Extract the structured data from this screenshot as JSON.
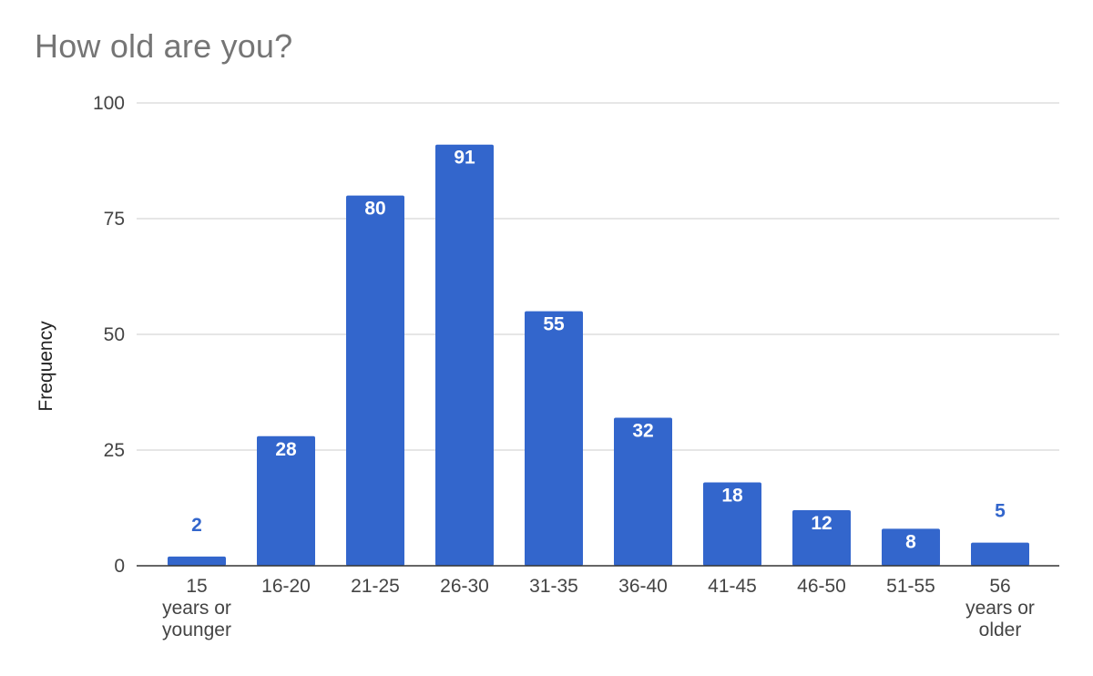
{
  "chart_data": {
    "type": "bar",
    "title": "How old are you?",
    "xlabel": "",
    "ylabel": "Frequency",
    "ylim": [
      0,
      100
    ],
    "yticks": [
      0,
      25,
      50,
      75,
      100
    ],
    "grid": true,
    "legend": "none",
    "categories": [
      [
        "15",
        "years or",
        "younger"
      ],
      [
        "16-20"
      ],
      [
        "21-25"
      ],
      [
        "26-30"
      ],
      [
        "31-35"
      ],
      [
        "36-40"
      ],
      [
        "41-45"
      ],
      [
        "46-50"
      ],
      [
        "51-55"
      ],
      [
        "56",
        "years or",
        "older"
      ]
    ],
    "values": [
      2,
      28,
      80,
      91,
      55,
      32,
      18,
      12,
      8,
      5
    ],
    "colors": {
      "bar": "#3366cc",
      "label_inside": "#ffffff",
      "label_outside": "#3366cc",
      "gridline": "#cccccc",
      "baseline": "#333333"
    }
  }
}
